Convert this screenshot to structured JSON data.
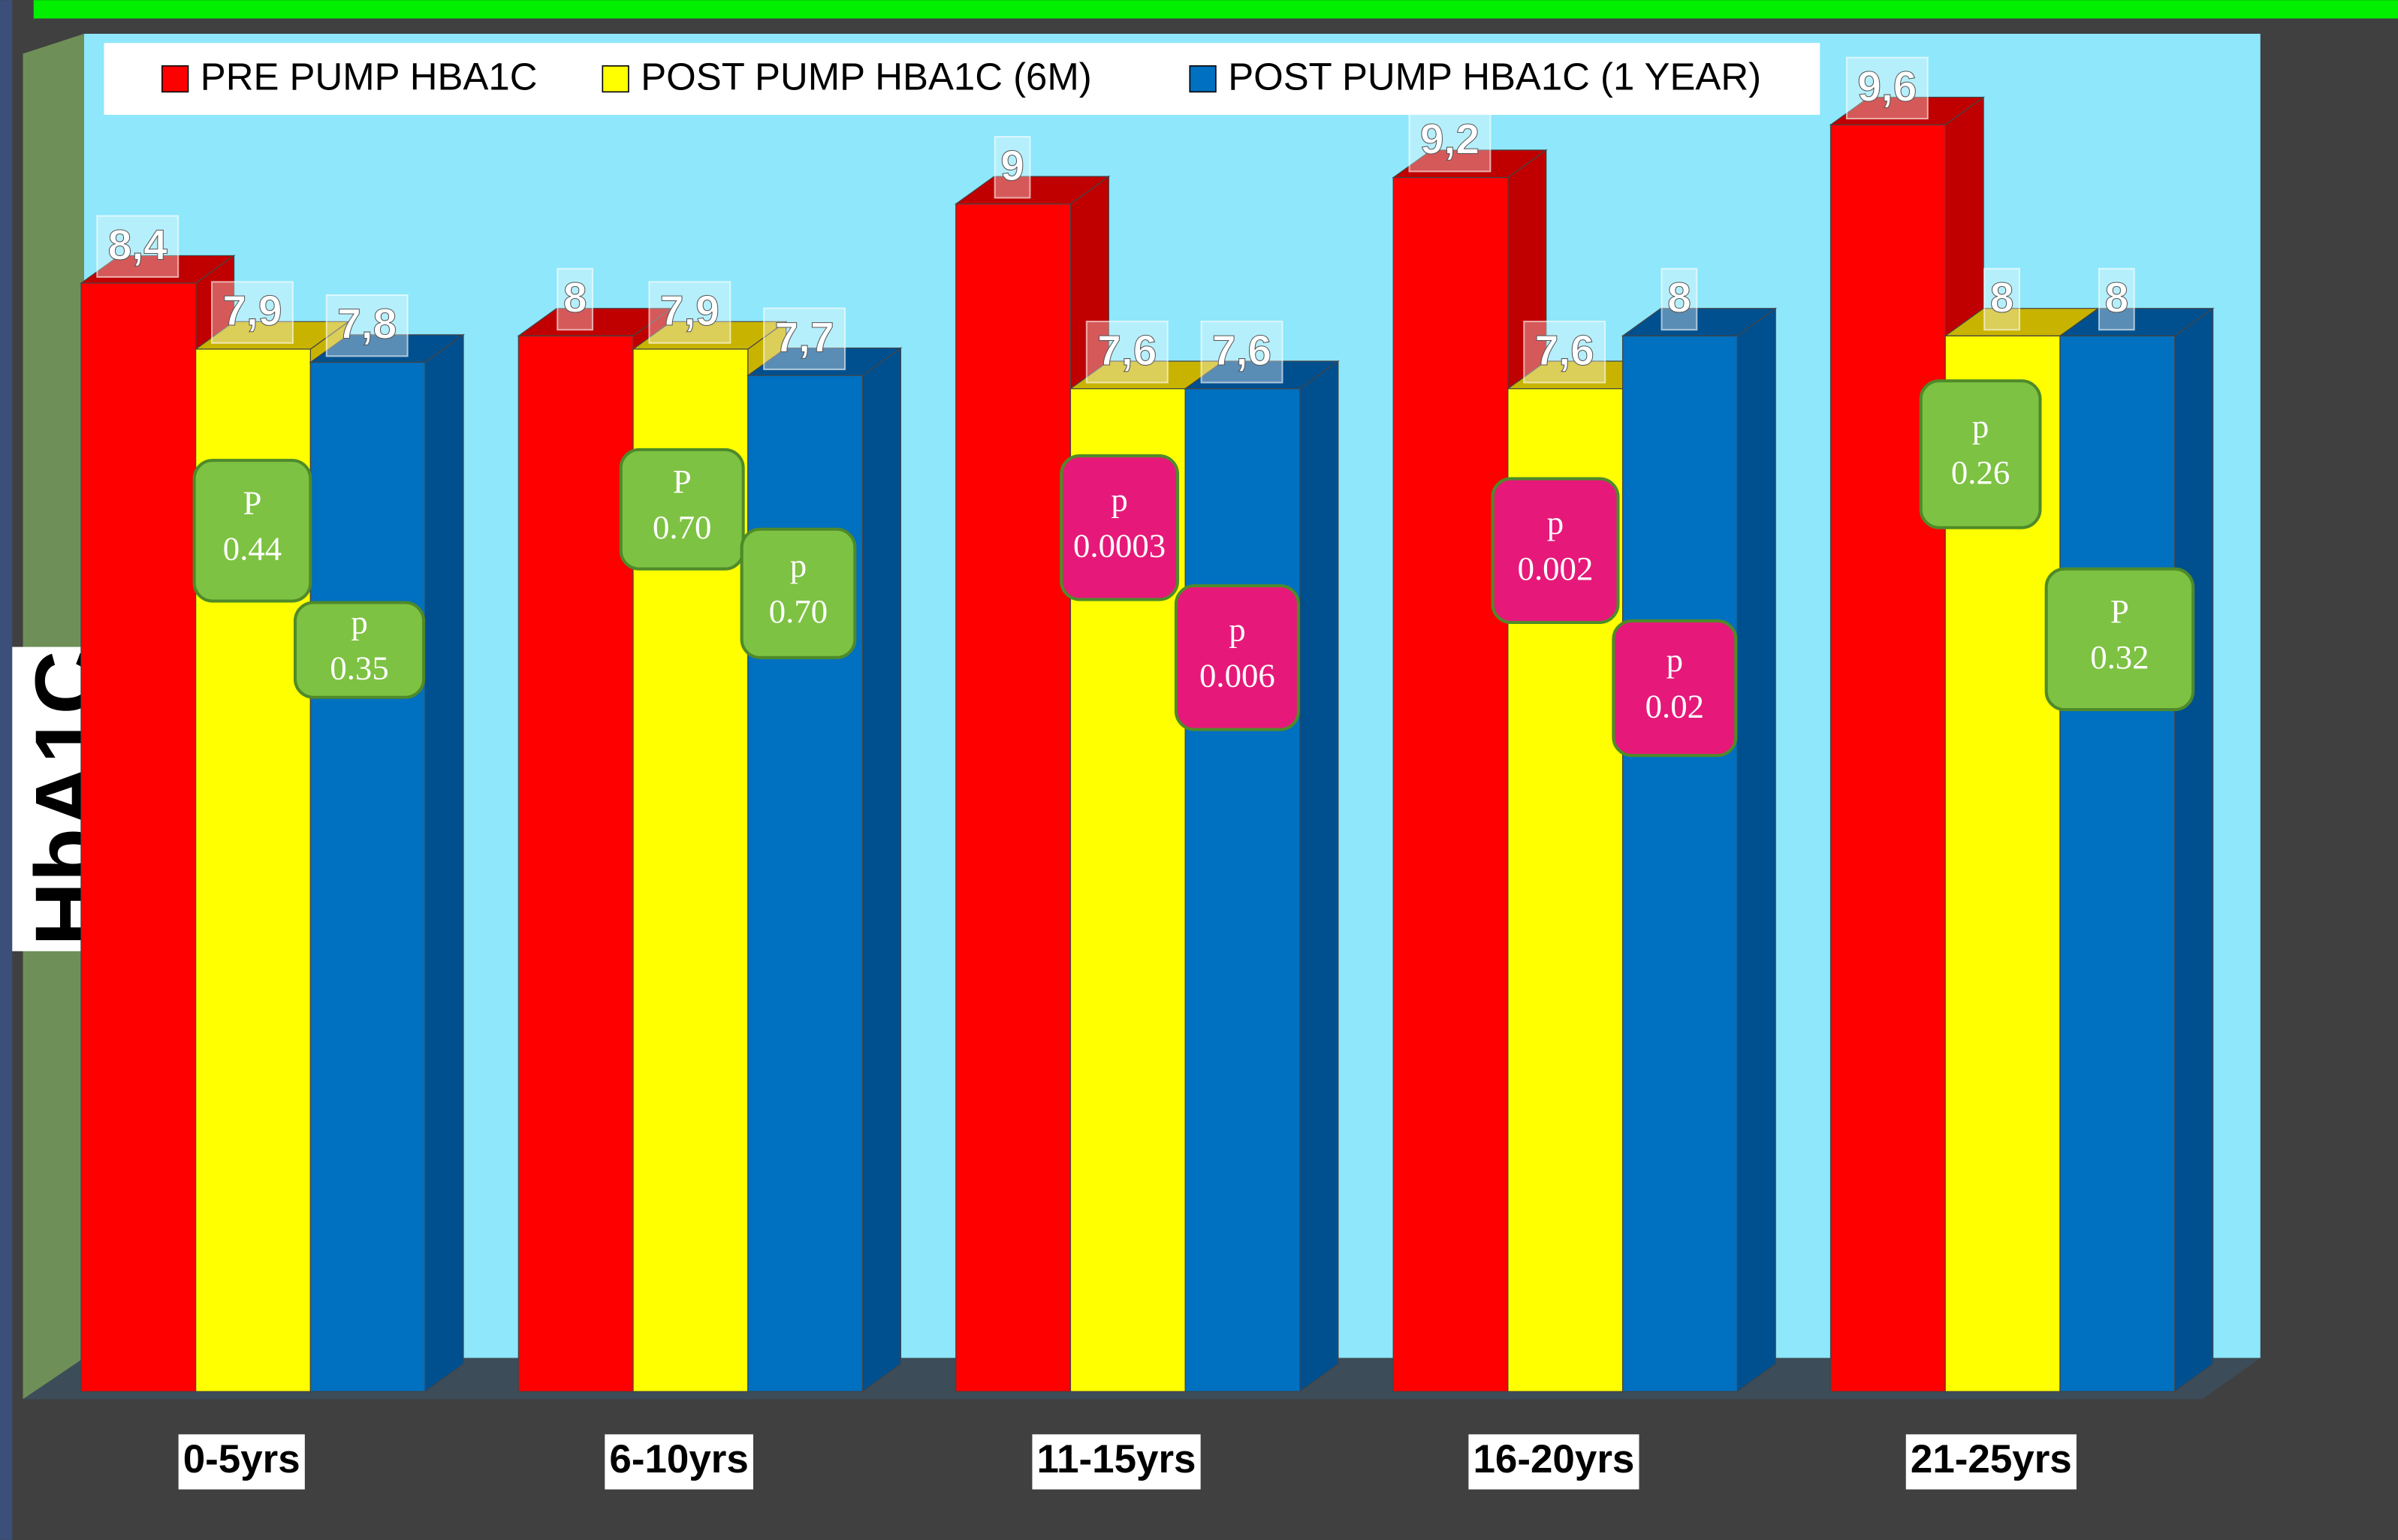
{
  "chart_data": {
    "type": "bar3d",
    "y_label": "HbA1C",
    "categories": [
      "0-5yrs",
      "6-10yrs",
      "11-15yrs",
      "16-20yrs",
      "21-25yrs"
    ],
    "series": [
      {
        "name": "PRE PUMP HBA1C",
        "color": "#ff0000",
        "side": "#c00000",
        "values": [
          8.4,
          8,
          9,
          9.2,
          9.6
        ],
        "value_labels": [
          "8,4",
          "8",
          "9",
          "9,2",
          "9,6"
        ]
      },
      {
        "name": "POST PUMP HBA1C (6M)",
        "color": "#ffff00",
        "side": "#c8b400",
        "values": [
          7.9,
          7.9,
          7.6,
          7.6,
          8
        ],
        "value_labels": [
          "7,9",
          "7,9",
          "7,6",
          "7,6",
          "8"
        ]
      },
      {
        "name": "POST PUMP HBA1C (1 YEAR)",
        "color": "#0070c0",
        "side": "#00508f",
        "values": [
          7.8,
          7.7,
          7.6,
          8,
          8
        ],
        "value_labels": [
          "7,8",
          "7,7",
          "7,6",
          "8",
          "8"
        ]
      }
    ],
    "annotations": [
      {
        "prefix": "P",
        "text": "0.44",
        "color": "#7dc242"
      },
      {
        "prefix": "p",
        "text": "0.35",
        "color": "#7dc242"
      },
      {
        "prefix": "P",
        "text": "0.70",
        "color": "#7dc242"
      },
      {
        "prefix": "p",
        "text": "0.70",
        "color": "#7dc242"
      },
      {
        "prefix": "p",
        "text": "0.0003",
        "color": "#e6197a"
      },
      {
        "prefix": "p",
        "text": "0.006",
        "color": "#e6197a"
      },
      {
        "prefix": "p",
        "text": "0.002",
        "color": "#e6197a"
      },
      {
        "prefix": "p",
        "text": "0.02",
        "color": "#e6197a"
      },
      {
        "prefix": "p",
        "text": "0.26",
        "color": "#7dc242"
      },
      {
        "prefix": "P",
        "text": "0.32",
        "color": "#7dc242"
      }
    ]
  }
}
